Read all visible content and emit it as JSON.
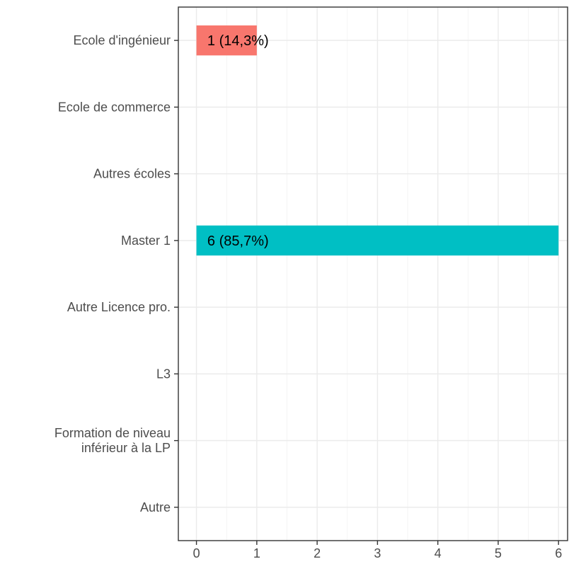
{
  "chart_data": {
    "type": "bar",
    "orientation": "horizontal",
    "categories": [
      [
        "Ecole d'ingénieur"
      ],
      [
        "Ecole de commerce"
      ],
      [
        "Autres écoles"
      ],
      [
        "Master 1"
      ],
      [
        "Autre Licence pro."
      ],
      [
        "L3"
      ],
      [
        "Formation de niveau",
        "inférieur à la LP"
      ],
      [
        "Autre"
      ]
    ],
    "values": [
      1,
      0,
      0,
      6,
      0,
      0,
      0,
      0
    ],
    "labels": [
      "1 (14,3%)",
      "",
      "",
      "6 (85,7%)",
      "",
      "",
      "",
      ""
    ],
    "colors": [
      "#F8766D",
      "#CD9600",
      "#7CAE00",
      "#00BFC4",
      "#00A9FF",
      "#C77CFF",
      "#FF61CC",
      "#00BE67"
    ],
    "xlim": [
      -0.3,
      6.15
    ],
    "xticks": [
      "0",
      "1",
      "2",
      "3",
      "4",
      "5",
      "6"
    ],
    "title": "",
    "xlabel": "",
    "ylabel": "",
    "grid": true,
    "legend": "none"
  }
}
